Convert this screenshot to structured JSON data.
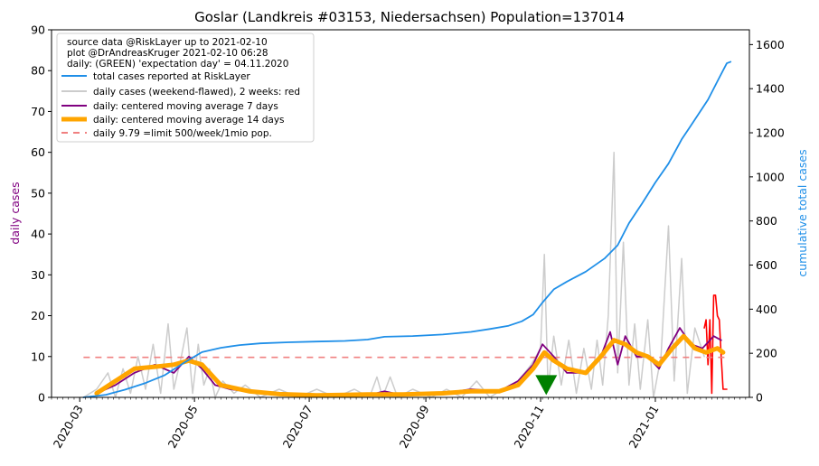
{
  "chart_data": {
    "type": "line",
    "title": "Goslar (Landkreis #03153, Niedersachsen) Population=137014",
    "ylabel_left": "daily cases",
    "ylabel_right": "cumulative total cases",
    "ylim_left": [
      0,
      90
    ],
    "ylim_right": [
      0,
      1667
    ],
    "yticks_left": [
      0,
      10,
      20,
      30,
      40,
      50,
      60,
      70,
      80,
      90
    ],
    "yticks_right": [
      0,
      200,
      400,
      600,
      800,
      1000,
      1200,
      1400,
      1600
    ],
    "xlim": [
      "2020-02-15",
      "2021-02-20"
    ],
    "xticks": [
      "2020-03",
      "2020-05",
      "2020-07",
      "2020-09",
      "2020-11",
      "2021-01"
    ],
    "grid": false,
    "legend_position": "top-left",
    "legend": {
      "info_lines": [
        "source data @RiskLayer up to 2021-02-10",
        "plot @DrAndreasKruger 2021-02-10 06:28",
        "daily: (GREEN) 'expectation day' = 04.11.2020"
      ],
      "entries": [
        {
          "label": "total cases reported at RiskLayer",
          "color": "#1f8fe8"
        },
        {
          "label": "daily cases (weekend-flawed), 2 weeks: red",
          "color": "#cccccc"
        },
        {
          "label": "daily: centered moving average 7 days",
          "color": "#800080"
        },
        {
          "label": "daily: centered moving average 14 days",
          "color": "#ffa500"
        },
        {
          "label": "daily 9.79 =limit 500/week/1mio pop.",
          "color": "#f08080"
        }
      ]
    },
    "colors": {
      "cumulative": "#1f8fe8",
      "daily": "#cccccc",
      "daily_recent": "#ff0000",
      "ma7": "#800080",
      "ma14": "#ffa500",
      "limit": "#f08080",
      "expectation_marker": "#008000",
      "left_axis_label": "#800080",
      "right_axis_label": "#1f8fe8"
    },
    "limit_value": 9.79,
    "limit_range": [
      "2020-03-03",
      "2021-02-08"
    ],
    "expectation_day": {
      "date": "2020-11-04",
      "value": 3
    },
    "cumulative": [
      [
        "2020-03-03",
        0
      ],
      [
        "2020-03-15",
        12
      ],
      [
        "2020-03-25",
        35
      ],
      [
        "2020-04-05",
        65
      ],
      [
        "2020-04-15",
        100
      ],
      [
        "2020-04-25",
        155
      ],
      [
        "2020-05-05",
        205
      ],
      [
        "2020-05-15",
        225
      ],
      [
        "2020-05-25",
        237
      ],
      [
        "2020-06-05",
        245
      ],
      [
        "2020-06-20",
        250
      ],
      [
        "2020-07-05",
        253
      ],
      [
        "2020-07-20",
        256
      ],
      [
        "2020-08-01",
        262
      ],
      [
        "2020-08-10",
        275
      ],
      [
        "2020-08-25",
        278
      ],
      [
        "2020-09-10",
        285
      ],
      [
        "2020-09-25",
        297
      ],
      [
        "2020-10-05",
        310
      ],
      [
        "2020-10-15",
        325
      ],
      [
        "2020-10-22",
        345
      ],
      [
        "2020-10-28",
        375
      ],
      [
        "2020-11-02",
        430
      ],
      [
        "2020-11-08",
        490
      ],
      [
        "2020-11-15",
        525
      ],
      [
        "2020-11-25",
        570
      ],
      [
        "2020-12-05",
        630
      ],
      [
        "2020-12-12",
        690
      ],
      [
        "2020-12-18",
        790
      ],
      [
        "2020-12-25",
        880
      ],
      [
        "2021-01-01",
        975
      ],
      [
        "2021-01-08",
        1060
      ],
      [
        "2021-01-15",
        1170
      ],
      [
        "2021-01-22",
        1260
      ],
      [
        "2021-01-29",
        1350
      ],
      [
        "2021-02-04",
        1450
      ],
      [
        "2021-02-08",
        1515
      ],
      [
        "2021-02-10",
        1522
      ]
    ],
    "daily": [
      [
        "2020-03-03",
        0
      ],
      [
        "2020-03-10",
        2
      ],
      [
        "2020-03-16",
        6
      ],
      [
        "2020-03-20",
        0
      ],
      [
        "2020-03-24",
        7
      ],
      [
        "2020-03-28",
        1
      ],
      [
        "2020-04-01",
        10
      ],
      [
        "2020-04-05",
        2
      ],
      [
        "2020-04-09",
        13
      ],
      [
        "2020-04-13",
        1
      ],
      [
        "2020-04-17",
        18
      ],
      [
        "2020-04-20",
        2
      ],
      [
        "2020-04-24",
        10
      ],
      [
        "2020-04-27",
        17
      ],
      [
        "2020-04-30",
        1
      ],
      [
        "2020-05-03",
        13
      ],
      [
        "2020-05-06",
        3
      ],
      [
        "2020-05-09",
        7
      ],
      [
        "2020-05-12",
        0
      ],
      [
        "2020-05-16",
        4
      ],
      [
        "2020-05-22",
        1
      ],
      [
        "2020-05-28",
        3
      ],
      [
        "2020-06-05",
        0
      ],
      [
        "2020-06-15",
        2
      ],
      [
        "2020-06-25",
        0
      ],
      [
        "2020-07-05",
        2
      ],
      [
        "2020-07-15",
        0
      ],
      [
        "2020-07-25",
        2
      ],
      [
        "2020-08-02",
        0
      ],
      [
        "2020-08-06",
        5
      ],
      [
        "2020-08-09",
        0
      ],
      [
        "2020-08-13",
        5
      ],
      [
        "2020-08-17",
        0
      ],
      [
        "2020-08-25",
        2
      ],
      [
        "2020-09-04",
        0
      ],
      [
        "2020-09-12",
        2
      ],
      [
        "2020-09-20",
        0
      ],
      [
        "2020-09-28",
        4
      ],
      [
        "2020-10-05",
        0
      ],
      [
        "2020-10-12",
        2
      ],
      [
        "2020-10-20",
        4
      ],
      [
        "2020-10-27",
        8
      ],
      [
        "2020-11-01",
        12
      ],
      [
        "2020-11-03",
        35
      ],
      [
        "2020-11-05",
        2
      ],
      [
        "2020-11-08",
        15
      ],
      [
        "2020-11-12",
        3
      ],
      [
        "2020-11-16",
        14
      ],
      [
        "2020-11-20",
        1
      ],
      [
        "2020-11-24",
        12
      ],
      [
        "2020-11-28",
        2
      ],
      [
        "2020-12-01",
        14
      ],
      [
        "2020-12-04",
        3
      ],
      [
        "2020-12-07",
        20
      ],
      [
        "2020-12-10",
        60
      ],
      [
        "2020-12-12",
        6
      ],
      [
        "2020-12-15",
        38
      ],
      [
        "2020-12-18",
        3
      ],
      [
        "2020-12-21",
        18
      ],
      [
        "2020-12-24",
        2
      ],
      [
        "2020-12-28",
        19
      ],
      [
        "2020-12-31",
        0
      ],
      [
        "2021-01-04",
        10
      ],
      [
        "2021-01-08",
        42
      ],
      [
        "2021-01-11",
        4
      ],
      [
        "2021-01-15",
        34
      ],
      [
        "2021-01-18",
        1
      ],
      [
        "2021-01-22",
        17
      ],
      [
        "2021-01-27",
        10
      ]
    ],
    "daily_recent": [
      [
        "2021-01-27",
        17
      ],
      [
        "2021-01-28",
        19
      ],
      [
        "2021-01-29",
        8
      ],
      [
        "2021-01-30",
        19
      ],
      [
        "2021-01-31",
        1
      ],
      [
        "2021-02-01",
        25
      ],
      [
        "2021-02-02",
        25
      ],
      [
        "2021-02-03",
        20
      ],
      [
        "2021-02-04",
        19
      ],
      [
        "2021-02-05",
        10
      ],
      [
        "2021-02-06",
        2
      ],
      [
        "2021-02-08",
        2
      ]
    ],
    "ma7": [
      [
        "2020-03-10",
        1
      ],
      [
        "2020-03-20",
        3
      ],
      [
        "2020-03-30",
        6
      ],
      [
        "2020-04-10",
        8
      ],
      [
        "2020-04-20",
        6
      ],
      [
        "2020-04-28",
        10
      ],
      [
        "2020-05-05",
        7
      ],
      [
        "2020-05-12",
        3
      ],
      [
        "2020-05-20",
        2
      ],
      [
        "2020-06-05",
        1
      ],
      [
        "2020-06-20",
        0.5
      ],
      [
        "2020-07-10",
        0.5
      ],
      [
        "2020-08-01",
        0.5
      ],
      [
        "2020-08-10",
        1.5
      ],
      [
        "2020-08-20",
        0.5
      ],
      [
        "2020-09-10",
        1
      ],
      [
        "2020-09-25",
        2
      ],
      [
        "2020-10-10",
        1.5
      ],
      [
        "2020-10-20",
        4
      ],
      [
        "2020-10-28",
        8
      ],
      [
        "2020-11-02",
        13
      ],
      [
        "2020-11-08",
        10
      ],
      [
        "2020-11-15",
        6
      ],
      [
        "2020-11-25",
        6
      ],
      [
        "2020-12-03",
        10
      ],
      [
        "2020-12-08",
        16
      ],
      [
        "2020-12-12",
        8
      ],
      [
        "2020-12-16",
        15
      ],
      [
        "2020-12-22",
        10
      ],
      [
        "2020-12-28",
        10
      ],
      [
        "2021-01-03",
        7
      ],
      [
        "2021-01-08",
        12
      ],
      [
        "2021-01-14",
        17
      ],
      [
        "2021-01-20",
        13
      ],
      [
        "2021-01-26",
        12
      ],
      [
        "2021-02-01",
        15
      ],
      [
        "2021-02-05",
        14
      ]
    ],
    "ma14": [
      [
        "2020-03-10",
        1
      ],
      [
        "2020-03-20",
        4
      ],
      [
        "2020-03-30",
        7
      ],
      [
        "2020-04-10",
        7.5
      ],
      [
        "2020-04-20",
        8
      ],
      [
        "2020-04-28",
        9
      ],
      [
        "2020-05-05",
        8
      ],
      [
        "2020-05-15",
        3
      ],
      [
        "2020-05-30",
        1.5
      ],
      [
        "2020-06-15",
        0.8
      ],
      [
        "2020-07-05",
        0.5
      ],
      [
        "2020-08-01",
        0.7
      ],
      [
        "2020-08-20",
        0.7
      ],
      [
        "2020-09-10",
        1
      ],
      [
        "2020-09-25",
        1.5
      ],
      [
        "2020-10-10",
        1.5
      ],
      [
        "2020-10-20",
        3
      ],
      [
        "2020-10-28",
        7
      ],
      [
        "2020-11-03",
        11
      ],
      [
        "2020-11-08",
        9
      ],
      [
        "2020-11-15",
        7
      ],
      [
        "2020-11-25",
        6
      ],
      [
        "2020-12-03",
        10
      ],
      [
        "2020-12-10",
        14
      ],
      [
        "2020-12-16",
        13
      ],
      [
        "2020-12-22",
        11
      ],
      [
        "2020-12-28",
        10
      ],
      [
        "2021-01-03",
        8
      ],
      [
        "2021-01-10",
        12
      ],
      [
        "2021-01-16",
        15
      ],
      [
        "2021-01-22",
        12
      ],
      [
        "2021-01-28",
        11
      ],
      [
        "2021-02-03",
        12
      ],
      [
        "2021-02-06",
        11
      ]
    ]
  }
}
